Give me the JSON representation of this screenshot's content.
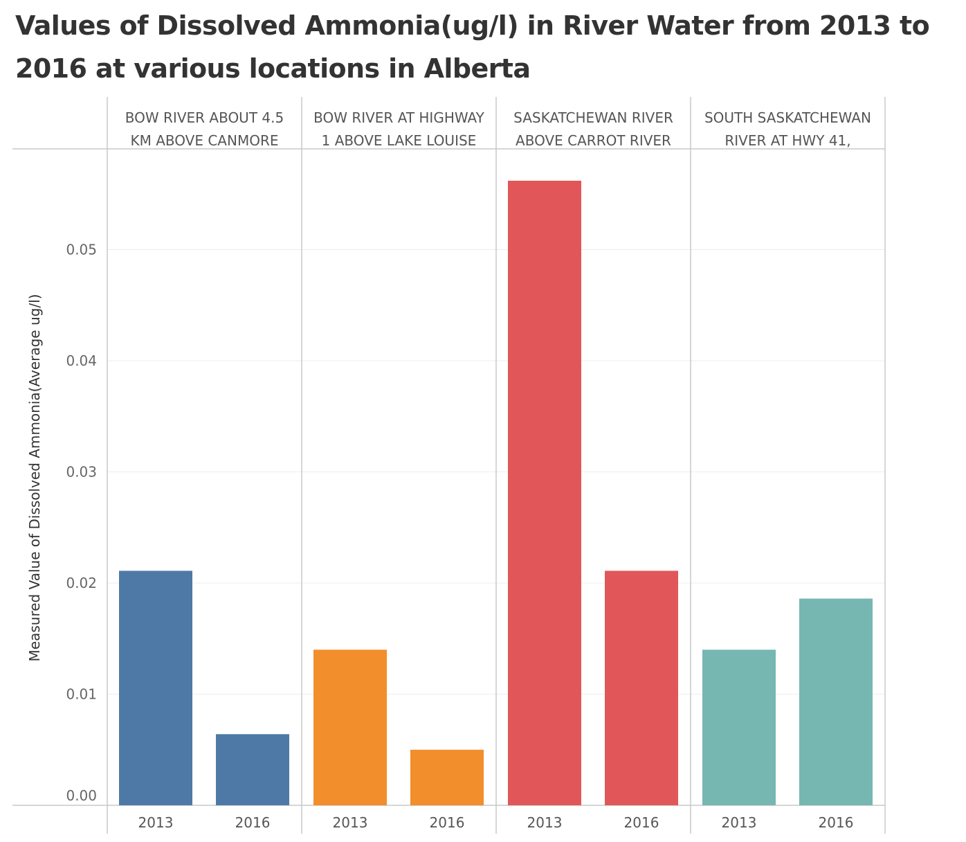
{
  "chart_data": {
    "type": "bar",
    "title": "Values of Dissolved Ammonia(ug/l) in River Water from 2013 to 2016 at various locations in Alberta",
    "ylabel": "Measured Value of Dissolved Ammonia(Average ug/l)",
    "xlabel": "",
    "ylim": [
      0,
      0.05875
    ],
    "yticks": [
      "0.00",
      "0.01",
      "0.02",
      "0.03",
      "0.04",
      "0.05"
    ],
    "grid": true,
    "panels": [
      {
        "header": [
          "BOW RIVER ABOUT 4.5",
          "KM ABOVE CANMORE"
        ],
        "color": "#4e79a7",
        "categories": [
          "2013",
          "2016"
        ],
        "values": [
          0.0211,
          0.0064
        ]
      },
      {
        "header": [
          "BOW RIVER AT HIGHWAY",
          "1 ABOVE LAKE LOUISE"
        ],
        "color": "#f28e2b",
        "categories": [
          "2013",
          "2016"
        ],
        "values": [
          0.014,
          0.005
        ]
      },
      {
        "header": [
          "SASKATCHEWAN RIVER",
          "ABOVE CARROT RIVER"
        ],
        "color": "#e15759",
        "categories": [
          "2013",
          "2016"
        ],
        "values": [
          0.0562,
          0.0211
        ]
      },
      {
        "header": [
          "SOUTH SASKATCHEWAN",
          "RIVER AT HWY 41,"
        ],
        "color": "#76b7b2",
        "categories": [
          "2013",
          "2016"
        ],
        "values": [
          0.014,
          0.0186
        ]
      }
    ]
  }
}
